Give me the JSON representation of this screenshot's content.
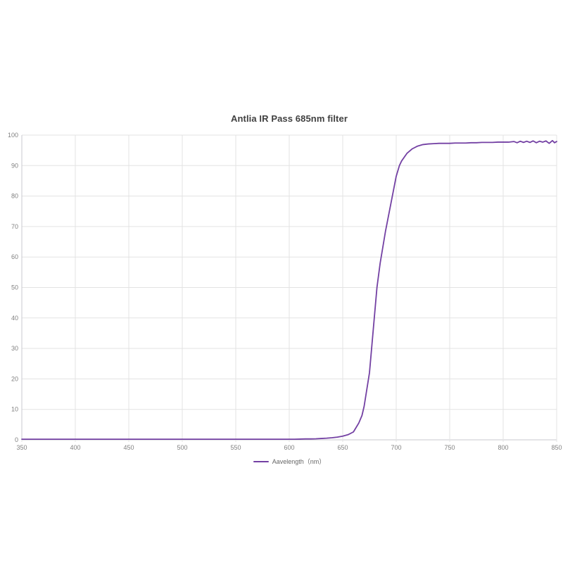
{
  "chart_data": {
    "type": "line",
    "title": "Antlia IR Pass 685nm filter",
    "xlabel": "",
    "ylabel": "",
    "xlim": [
      350,
      850
    ],
    "ylim": [
      0,
      100
    ],
    "x_ticks": [
      350,
      400,
      450,
      500,
      550,
      600,
      650,
      700,
      750,
      800,
      850
    ],
    "y_ticks": [
      0,
      10,
      20,
      30,
      40,
      50,
      60,
      70,
      80,
      90,
      100
    ],
    "grid": true,
    "legend_position": "bottom",
    "colors": {
      "line": "#7340a3",
      "gridline": "#e3e3e3",
      "axis_line": "#c9c9cf",
      "title_text": "#404040",
      "tick_text": "#808080",
      "background": "#ffffff"
    },
    "series": [
      {
        "name": "Aavelength（nm）",
        "color": "#7340a3",
        "x": [
          350,
          360,
          370,
          380,
          390,
          400,
          410,
          420,
          430,
          440,
          450,
          460,
          470,
          480,
          490,
          500,
          510,
          520,
          530,
          540,
          550,
          560,
          570,
          580,
          590,
          600,
          605,
          610,
          615,
          620,
          625,
          630,
          635,
          640,
          645,
          650,
          655,
          660,
          665,
          668,
          670,
          675,
          680,
          682,
          685,
          690,
          695,
          700,
          703,
          705,
          710,
          715,
          720,
          725,
          730,
          735,
          740,
          745,
          750,
          755,
          760,
          765,
          770,
          775,
          780,
          785,
          790,
          795,
          800,
          805,
          810,
          813,
          816,
          819,
          822,
          825,
          828,
          831,
          834,
          837,
          840,
          843,
          846,
          848,
          850
        ],
        "y": [
          0.2,
          0.2,
          0.2,
          0.2,
          0.2,
          0.2,
          0.2,
          0.2,
          0.2,
          0.2,
          0.2,
          0.2,
          0.2,
          0.2,
          0.2,
          0.2,
          0.2,
          0.2,
          0.2,
          0.2,
          0.2,
          0.2,
          0.2,
          0.2,
          0.2,
          0.2,
          0.2,
          0.25,
          0.3,
          0.3,
          0.35,
          0.45,
          0.55,
          0.7,
          0.9,
          1.2,
          1.7,
          2.6,
          5.5,
          8,
          11,
          22,
          42,
          50,
          58,
          68.5,
          77.5,
          86.5,
          90,
          91.5,
          94,
          95.5,
          96.4,
          96.9,
          97.1,
          97.2,
          97.3,
          97.3,
          97.3,
          97.4,
          97.4,
          97.4,
          97.5,
          97.5,
          97.6,
          97.6,
          97.6,
          97.7,
          97.7,
          97.7,
          97.9,
          97.5,
          98,
          97.6,
          98,
          97.6,
          98.1,
          97.5,
          98,
          97.7,
          98.1,
          97.3,
          98.2,
          97.5,
          97.9
        ]
      }
    ]
  }
}
